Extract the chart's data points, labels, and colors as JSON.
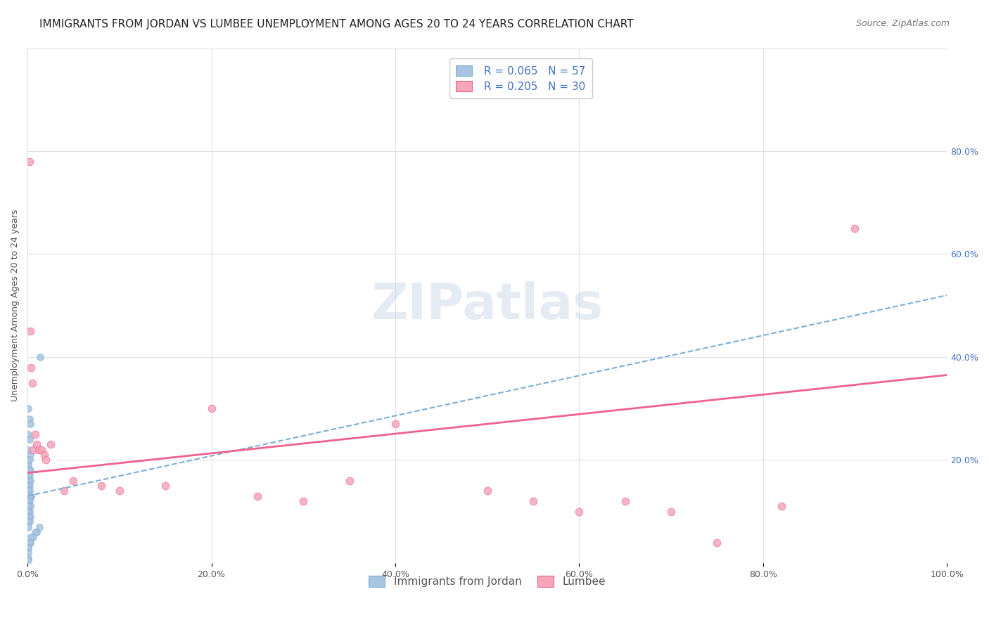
{
  "title": "IMMIGRANTS FROM JORDAN VS LUMBEE UNEMPLOYMENT AMONG AGES 20 TO 24 YEARS CORRELATION CHART",
  "source": "Source: ZipAtlas.com",
  "xlabel_bottom": "",
  "ylabel": "Unemployment Among Ages 20 to 24 years",
  "xticklabels": [
    "0.0%",
    "20.0%",
    "40.0%",
    "60.0%",
    "80.0%",
    "100.0%"
  ],
  "yticklabels_right": [
    "",
    "20.0%",
    "40.0%",
    "60.0%",
    "80.0%"
  ],
  "legend_label1": "Immigrants from Jordan",
  "legend_label2": "Lumbee",
  "legend_r1": "R = 0.065",
  "legend_n1": "N = 57",
  "legend_r2": "R = 0.205",
  "legend_n2": "N = 30",
  "color_jordan": "#a8c4e0",
  "color_lumbee": "#f4a7b9",
  "line_color_jordan": "#7bafd4",
  "line_color_lumbee": "#f06090",
  "background_color": "#ffffff",
  "grid_color": "#e0e0e8",
  "xlim": [
    0,
    1.0
  ],
  "ylim": [
    0,
    1.0
  ],
  "jordan_x": [
    0.001,
    0.002,
    0.003,
    0.001,
    0.002,
    0.001,
    0.003,
    0.001,
    0.002,
    0.001,
    0.001,
    0.002,
    0.001,
    0.003,
    0.002,
    0.001,
    0.002,
    0.001,
    0.003,
    0.001,
    0.001,
    0.002,
    0.001,
    0.002,
    0.001,
    0.004,
    0.003,
    0.002,
    0.001,
    0.001,
    0.002,
    0.001,
    0.003,
    0.001,
    0.002,
    0.001,
    0.001,
    0.002,
    0.001,
    0.003,
    0.001,
    0.002,
    0.001,
    0.001,
    0.013,
    0.01,
    0.008,
    0.006,
    0.004,
    0.003,
    0.002,
    0.001,
    0.001,
    0.014,
    0.001,
    0.001,
    0.001
  ],
  "jordan_y": [
    0.3,
    0.28,
    0.27,
    0.25,
    0.24,
    0.22,
    0.21,
    0.2,
    0.2,
    0.19,
    0.19,
    0.18,
    0.18,
    0.18,
    0.17,
    0.17,
    0.16,
    0.16,
    0.16,
    0.15,
    0.15,
    0.15,
    0.14,
    0.14,
    0.14,
    0.13,
    0.13,
    0.13,
    0.12,
    0.12,
    0.12,
    0.11,
    0.11,
    0.11,
    0.1,
    0.1,
    0.1,
    0.09,
    0.09,
    0.09,
    0.08,
    0.08,
    0.08,
    0.07,
    0.07,
    0.06,
    0.06,
    0.05,
    0.05,
    0.04,
    0.04,
    0.03,
    0.03,
    0.4,
    0.02,
    0.01,
    0.005
  ],
  "lumbee_x": [
    0.002,
    0.003,
    0.004,
    0.005,
    0.006,
    0.008,
    0.01,
    0.012,
    0.015,
    0.018,
    0.02,
    0.025,
    0.04,
    0.05,
    0.08,
    0.1,
    0.15,
    0.2,
    0.25,
    0.3,
    0.35,
    0.4,
    0.5,
    0.55,
    0.6,
    0.65,
    0.7,
    0.75,
    0.82,
    0.9
  ],
  "lumbee_y": [
    0.78,
    0.45,
    0.38,
    0.35,
    0.22,
    0.25,
    0.23,
    0.22,
    0.22,
    0.21,
    0.2,
    0.23,
    0.14,
    0.16,
    0.15,
    0.14,
    0.15,
    0.3,
    0.13,
    0.12,
    0.16,
    0.27,
    0.14,
    0.12,
    0.1,
    0.12,
    0.1,
    0.04,
    0.11,
    0.65
  ],
  "jordan_line_x": [
    0.0,
    1.0
  ],
  "jordan_line_y": [
    0.13,
    0.52
  ],
  "lumbee_line_x": [
    0.0,
    1.0
  ],
  "lumbee_line_y": [
    0.175,
    0.365
  ],
  "watermark": "ZIPatlas",
  "title_fontsize": 11,
  "axis_fontsize": 9,
  "legend_fontsize": 11,
  "source_fontsize": 9
}
